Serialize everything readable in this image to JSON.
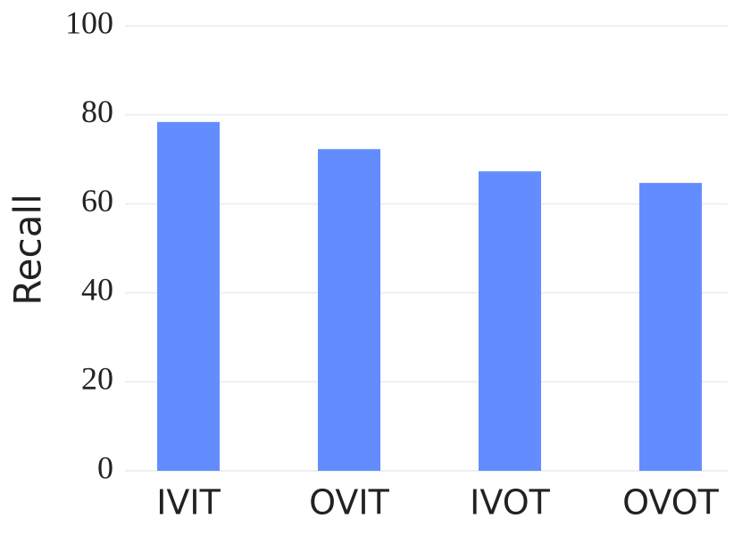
{
  "chart_data": {
    "type": "bar",
    "y_label": "Recall",
    "categories": [
      "IVIT",
      "OVIT",
      "IVOT",
      "OVOT"
    ],
    "values": [
      78.4,
      72.3,
      67.3,
      64.7
    ],
    "color": "#638cff",
    "ylim": [
      0,
      100
    ],
    "yticks": [
      0,
      20,
      40,
      60,
      80,
      100
    ],
    "grid": true
  }
}
